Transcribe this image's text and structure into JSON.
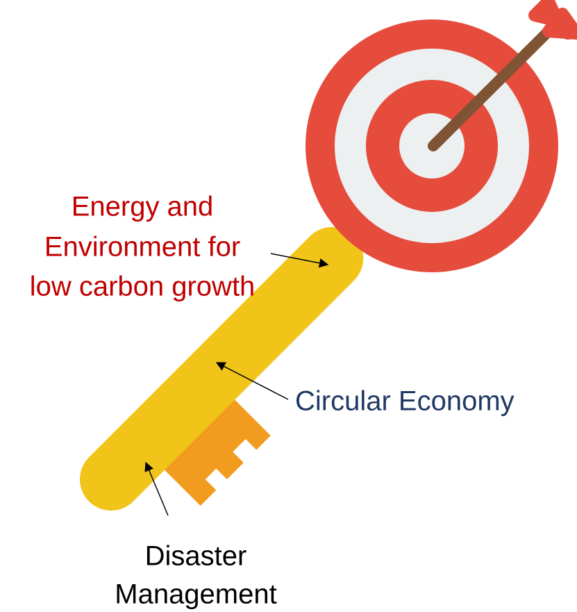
{
  "labels": [
    {
      "lines": [
        "Energy and",
        "Environment for",
        "low carbon growth"
      ]
    },
    {
      "lines": [
        "Circular Economy"
      ]
    },
    {
      "lines": [
        "Disaster",
        "Management"
      ]
    }
  ]
}
